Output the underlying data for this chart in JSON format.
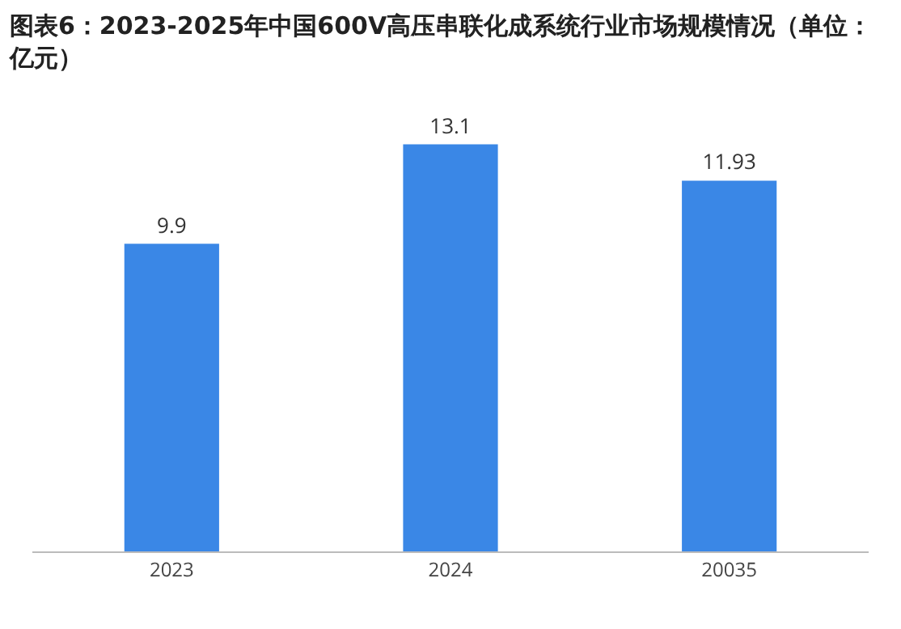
{
  "chart_data": {
    "type": "bar",
    "title": "图表6：2023-2025年中国600V高压串联化成系统行业市场规模情况（单位：亿元）",
    "categories": [
      "2023",
      "2024",
      "20035"
    ],
    "values": [
      9.9,
      13.1,
      11.93
    ],
    "color": "#3a87e6",
    "data_labels": true,
    "grid": false,
    "legend": false
  }
}
